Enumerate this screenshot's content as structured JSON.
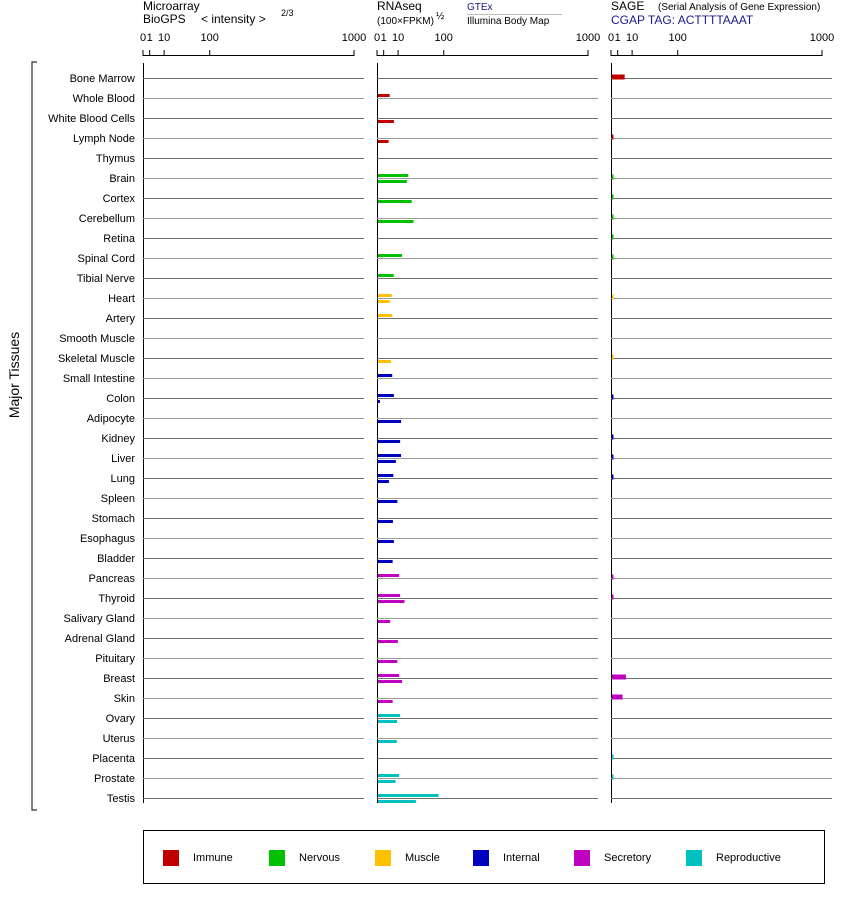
{
  "headers": {
    "microarray_line1": "Microarray",
    "microarray_line2": "BioGPS",
    "microarray_intensity": "< intensity >",
    "microarray_exponent": "2/3",
    "rnaseq_line1": "RNAseq",
    "rnaseq_line2": "(100×FPKM)",
    "rnaseq_exponent": "½",
    "gtex_label": "GTEx",
    "illumina_label": "Illumina Body Map",
    "sage_line1": "SAGE",
    "sage_desc": "(Serial Analysis of Gene Expression)",
    "sage_tag": "CGAP TAG: ACTTTTAAAT"
  },
  "y_axis_label": "Major Tissues",
  "colors": {
    "Immune": "#c00000",
    "Nervous": "#00c000",
    "Muscle": "#ffc000",
    "Internal": "#0000c0",
    "Secretory": "#c000c0",
    "Reproductive": "#00c0c0"
  },
  "legend": [
    {
      "label": "Immune",
      "color": "#c00000"
    },
    {
      "label": "Nervous",
      "color": "#00c000"
    },
    {
      "label": "Muscle",
      "color": "#ffc000"
    },
    {
      "label": "Internal",
      "color": "#0000c0"
    },
    {
      "label": "Secretory",
      "color": "#c000c0"
    },
    {
      "label": "Reproductive",
      "color": "#00c0c0"
    }
  ],
  "chart_data": {
    "type": "bar",
    "orientation": "horizontal",
    "scale": "power (value^(1/2))",
    "xlim": [
      0,
      1000
    ],
    "ticks": [
      "0",
      "1",
      "10",
      "100",
      "1000"
    ],
    "panels": [
      "Microarray BioGPS",
      "RNAseq",
      "SAGE"
    ],
    "categories": [
      "Bone Marrow",
      "Whole Blood",
      "White Blood Cells",
      "Lymph Node",
      "Thymus",
      "Brain",
      "Cortex",
      "Cerebellum",
      "Retina",
      "Spinal Cord",
      "Tibial Nerve",
      "Heart",
      "Artery",
      "Smooth Muscle",
      "Skeletal Muscle",
      "Small Intestine",
      "Colon",
      "Adipocyte",
      "Kidney",
      "Liver",
      "Lung",
      "Spleen",
      "Stomach",
      "Esophagus",
      "Bladder",
      "Pancreas",
      "Thyroid",
      "Salivary Gland",
      "Adrenal Gland",
      "Pituitary",
      "Breast",
      "Skin",
      "Ovary",
      "Uterus",
      "Placenta",
      "Prostate",
      "Testis"
    ],
    "groups": [
      "Immune",
      "Immune",
      "Immune",
      "Immune",
      "Immune",
      "Nervous",
      "Nervous",
      "Nervous",
      "Nervous",
      "Nervous",
      "Nervous",
      "Muscle",
      "Muscle",
      "Muscle",
      "Muscle",
      "Internal",
      "Internal",
      "Internal",
      "Internal",
      "Internal",
      "Internal",
      "Internal",
      "Internal",
      "Internal",
      "Internal",
      "Secretory",
      "Secretory",
      "Secretory",
      "Secretory",
      "Secretory",
      "Secretory",
      "Secretory",
      "Reproductive",
      "Reproductive",
      "Reproductive",
      "Reproductive",
      "Reproductive"
    ],
    "series": [
      {
        "name": "GTEx",
        "panel": "RNAseq",
        "values": [
          null,
          3.6,
          null,
          null,
          null,
          22,
          null,
          null,
          null,
          14,
          6.3,
          4.9,
          5.3,
          null,
          null,
          5.2,
          6.4,
          null,
          null,
          13,
          6.0,
          null,
          null,
          null,
          null,
          11,
          12,
          null,
          null,
          null,
          11,
          null,
          12,
          null,
          null,
          11,
          85
        ]
      },
      {
        "name": "Illumina Body Map",
        "panel": "RNAseq",
        "values": [
          null,
          null,
          6.4,
          3.0,
          null,
          20,
          27,
          30,
          null,
          null,
          null,
          3.6,
          null,
          null,
          4.4,
          null,
          0.2,
          13,
          12,
          8.0,
          3.2,
          9.3,
          5.7,
          6.4,
          5.5,
          null,
          17,
          3.9,
          9.8,
          9.3,
          14,
          5.5,
          9.1,
          8.8,
          null,
          7.7,
          34
        ]
      },
      {
        "name": "SAGE",
        "panel": "SAGE",
        "values": [
          4.2,
          null,
          null,
          0.02,
          null,
          0.02,
          0.02,
          0.02,
          0.02,
          0.02,
          null,
          0.01,
          null,
          null,
          0.01,
          null,
          0.03,
          null,
          0.03,
          0.03,
          0.03,
          null,
          null,
          null,
          null,
          0.02,
          0.02,
          null,
          null,
          null,
          5.0,
          3.0,
          null,
          null,
          0.02,
          0.02,
          null
        ]
      }
    ]
  }
}
